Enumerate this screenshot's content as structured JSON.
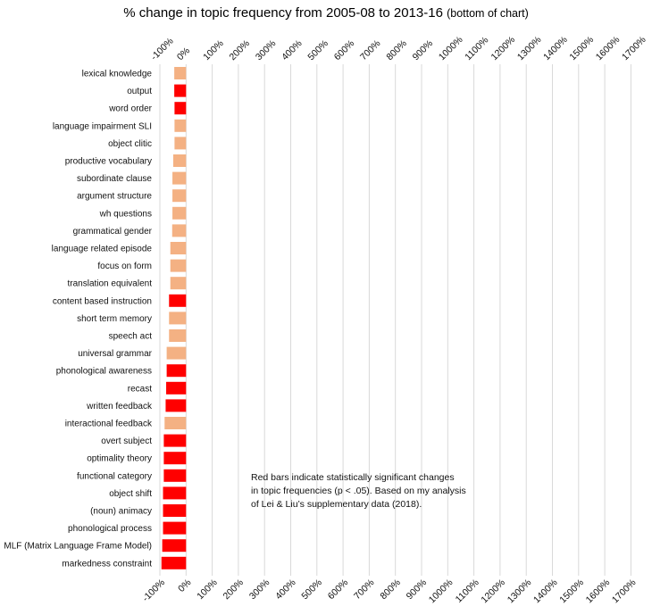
{
  "chart_data": {
    "type": "bar",
    "orientation": "horizontal",
    "title": "% change in topic frequency from 2005-08 to 2013-16",
    "title_note": "(bottom of chart)",
    "xlabel": "",
    "ylabel": "",
    "xlim": [
      -100,
      1700
    ],
    "xticks": [
      "-100%",
      "0%",
      "100%",
      "200%",
      "300%",
      "400%",
      "500%",
      "600%",
      "700%",
      "800%",
      "900%",
      "1000%",
      "1100%",
      "1200%",
      "1300%",
      "1400%",
      "1500%",
      "1600%",
      "1700%"
    ],
    "xtick_values": [
      -100,
      0,
      100,
      200,
      300,
      400,
      500,
      600,
      700,
      800,
      900,
      1000,
      1100,
      1200,
      1300,
      1400,
      1500,
      1600,
      1700
    ],
    "grid": "vertical",
    "colors": {
      "significant": "#ff0000",
      "not_significant": "#f4b183"
    },
    "categories": [
      "lexical knowledge",
      "output",
      "word order",
      "language impairment SLI",
      "object clitic",
      "productive vocabulary",
      "subordinate clause",
      "argument structure",
      "wh questions",
      "grammatical gender",
      "language related episode",
      "focus on form",
      "translation equivalent",
      "content based instruction",
      "short term memory",
      "speech act",
      "universal grammar",
      "phonological awareness",
      "recast",
      "written feedback",
      "interactional feedback",
      "overt subject",
      "optimality theory",
      "functional category",
      "object shift",
      "(noun) animacy",
      "phonological process",
      "MLF (Matrix Language Frame Model)",
      "markedness constraint"
    ],
    "values": [
      -45,
      -45,
      -44,
      -44,
      -44,
      -49,
      -52,
      -52,
      -52,
      -53,
      -60,
      -60,
      -60,
      -65,
      -65,
      -65,
      -74,
      -74,
      -76,
      -78,
      -82,
      -85,
      -85,
      -85,
      -88,
      -88,
      -88,
      -91,
      -94
    ],
    "significant": [
      false,
      true,
      true,
      false,
      false,
      false,
      false,
      false,
      false,
      false,
      false,
      false,
      false,
      true,
      false,
      false,
      false,
      true,
      true,
      true,
      false,
      true,
      true,
      true,
      true,
      true,
      true,
      true,
      true
    ],
    "annotation": [
      "Red bars indicate statistically significant changes",
      "in topic frequencies (p < .05). Based on my analysis",
      "of Lei & Liu’s supplementary data (2018)."
    ]
  }
}
